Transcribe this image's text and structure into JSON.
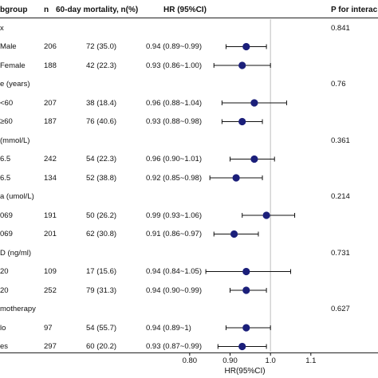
{
  "colors": {
    "marker": "#1b1f7a",
    "ci_line": "#111111",
    "ref_line": "#bdbdbd",
    "text": "#111111"
  },
  "header": {
    "subgroup": "bgroup",
    "n": "n",
    "mortality": "60-day mortality, n(%)",
    "hr": "HR (95%CI)",
    "p": "P for interac"
  },
  "chart_data": {
    "type": "forest",
    "xlabel": "HR(95%CI)",
    "xlim": [
      0.745,
      1.13
    ],
    "xticks": [
      0.8,
      0.9,
      1.0,
      1.1
    ],
    "xtick_labels": [
      "0.80",
      "0.90",
      "1.0",
      "1.1"
    ],
    "reference_line": 1.0,
    "rows": [
      {
        "kind": "group",
        "label": "x",
        "p": "0.841"
      },
      {
        "kind": "item",
        "label": "Male",
        "n": "206",
        "deaths": "72 (35.0)",
        "hr_text": "0.94 (0.89~0.99)",
        "hr": 0.94,
        "lo": 0.89,
        "hi": 0.99
      },
      {
        "kind": "item",
        "label": "Female",
        "n": "188",
        "deaths": "42 (22.3)",
        "hr_text": "0.93 (0.86~1.00)",
        "hr": 0.93,
        "lo": 0.86,
        "hi": 1.0
      },
      {
        "kind": "group",
        "label": "e (years)",
        "p": "0.76"
      },
      {
        "kind": "item",
        "label": "<60",
        "n": "207",
        "deaths": "38 (18.4)",
        "hr_text": "0.96 (0.88~1.04)",
        "hr": 0.96,
        "lo": 0.88,
        "hi": 1.04
      },
      {
        "kind": "item",
        "label": "≥60",
        "n": "187",
        "deaths": "76 (40.6)",
        "hr_text": "0.93 (0.88~0.98)",
        "hr": 0.93,
        "lo": 0.88,
        "hi": 0.98
      },
      {
        "kind": "group",
        "label": "(mmol/L)",
        "p": "0.361"
      },
      {
        "kind": "item",
        "label": "6.5",
        "n": "242",
        "deaths": "54 (22.3)",
        "hr_text": "0.96 (0.90~1.01)",
        "hr": 0.96,
        "lo": 0.9,
        "hi": 1.01
      },
      {
        "kind": "item",
        "label": "6.5",
        "n": "134",
        "deaths": "52 (38.8)",
        "hr_text": "0.92 (0.85~0.98)",
        "hr": 0.915,
        "lo": 0.85,
        "hi": 0.98
      },
      {
        "kind": "group",
        "label": "a (umol/L)",
        "p": "0.214"
      },
      {
        "kind": "item",
        "label": "069",
        "n": "191",
        "deaths": "50 (26.2)",
        "hr_text": "0.99 (0.93~1.06)",
        "hr": 0.99,
        "lo": 0.93,
        "hi": 1.06
      },
      {
        "kind": "item",
        "label": "069",
        "n": "201",
        "deaths": "62 (30.8)",
        "hr_text": "0.91 (0.86~0.97)",
        "hr": 0.91,
        "lo": 0.86,
        "hi": 0.97
      },
      {
        "kind": "group",
        "label": "D (ng/ml)",
        "p": "0.731"
      },
      {
        "kind": "item",
        "label": "20",
        "n": "109",
        "deaths": "17 (15.6)",
        "hr_text": "0.94 (0.84~1.05)",
        "hr": 0.94,
        "lo": 0.84,
        "hi": 1.05
      },
      {
        "kind": "item",
        "label": "20",
        "n": "252",
        "deaths": "79 (31.3)",
        "hr_text": "0.94 (0.90~0.99)",
        "hr": 0.94,
        "lo": 0.9,
        "hi": 0.99
      },
      {
        "kind": "group",
        "label": "motherapy",
        "p": "0.627"
      },
      {
        "kind": "item",
        "label": "lo",
        "n": "97",
        "deaths": "54 (55.7)",
        "hr_text": "0.94 (0.89~1)",
        "hr": 0.94,
        "lo": 0.89,
        "hi": 1.0
      },
      {
        "kind": "item",
        "label": "es",
        "n": "297",
        "deaths": "60 (20.2)",
        "hr_text": "0.93 (0.87~0.99)",
        "hr": 0.93,
        "lo": 0.87,
        "hi": 0.99
      }
    ]
  }
}
